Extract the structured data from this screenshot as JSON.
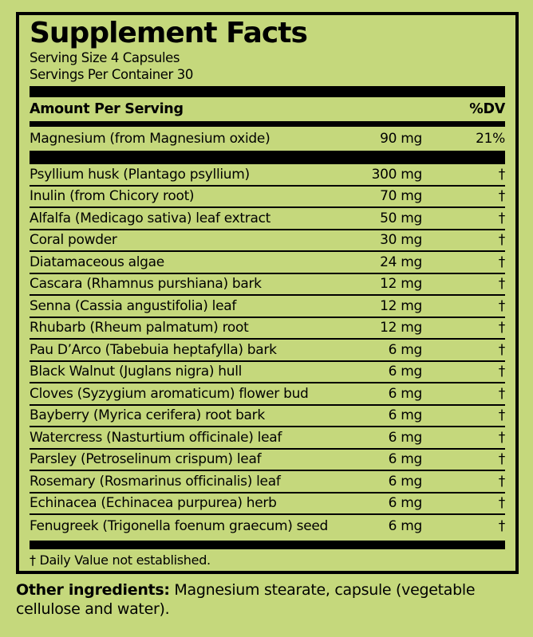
{
  "colors": {
    "background": "#c5d87c",
    "ink": "#000000"
  },
  "panel": {
    "title": "Supplement Facts",
    "serving_size": "Serving Size 4 Capsules",
    "servings_per_container": "Servings Per Container 30",
    "column_headers": {
      "left": "Amount Per Serving",
      "right": "%DV"
    },
    "magnesium_row": {
      "name": "Magnesium (from Magnesium oxide)",
      "amount": "90 mg",
      "dv": "21%"
    },
    "ingredients": [
      {
        "name": "Psyllium husk (Plantago psyllium)",
        "amount": "300 mg",
        "dv": "†"
      },
      {
        "name": "Inulin (from Chicory root)",
        "amount": "70 mg",
        "dv": "†"
      },
      {
        "name": "Alfalfa (Medicago sativa) leaf extract",
        "amount": "50 mg",
        "dv": "†"
      },
      {
        "name": "Coral powder",
        "amount": "30 mg",
        "dv": "†"
      },
      {
        "name": "Diatamaceous algae",
        "amount": "24 mg",
        "dv": "†"
      },
      {
        "name": "Cascara (Rhamnus purshiana) bark",
        "amount": "12 mg",
        "dv": "†"
      },
      {
        "name": "Senna (Cassia angustifolia) leaf",
        "amount": "12 mg",
        "dv": "†"
      },
      {
        "name": "Rhubarb (Rheum palmatum) root",
        "amount": "12 mg",
        "dv": "†"
      },
      {
        "name": "Pau D’Arco (Tabebuia heptafylla) bark",
        "amount": "6 mg",
        "dv": "†"
      },
      {
        "name": "Black Walnut (Juglans nigra) hull",
        "amount": "6 mg",
        "dv": "†"
      },
      {
        "name": "Cloves (Syzygium aromaticum) flower bud",
        "amount": "6 mg",
        "dv": "†"
      },
      {
        "name": "Bayberry (Myrica cerifera) root bark",
        "amount": "6 mg",
        "dv": "†"
      },
      {
        "name": "Watercress (Nasturtium officinale) leaf",
        "amount": "6 mg",
        "dv": "†"
      },
      {
        "name": "Parsley (Petroselinum crispum) leaf",
        "amount": "6 mg",
        "dv": "†"
      },
      {
        "name": "Rosemary (Rosmarinus officinalis) leaf",
        "amount": "6 mg",
        "dv": "†"
      },
      {
        "name": "Echinacea (Echinacea purpurea) herb",
        "amount": "6 mg",
        "dv": "†"
      },
      {
        "name": "Fenugreek (Trigonella foenum graecum) seed",
        "amount": "6 mg",
        "dv": "†"
      }
    ],
    "footnote": "† Daily Value not established."
  },
  "other_ingredients": {
    "label": "Other ingredients:",
    "text": "Magnesium stearate, capsule (vegetable cellulose and water)."
  }
}
